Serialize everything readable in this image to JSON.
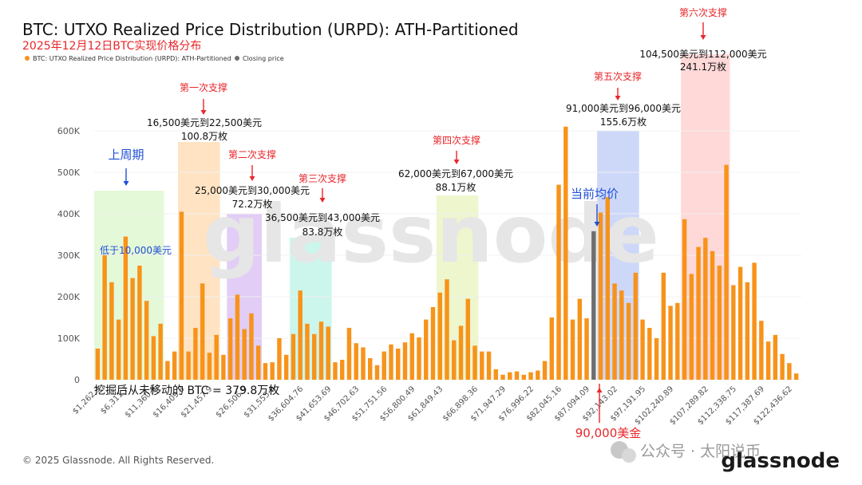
{
  "title": "BTC: UTXO Realized Price Distribution (URPD): ATH-Partitioned",
  "subtitle": "2025年12月12日BTC实现价格分布",
  "legend": {
    "series": "BTC: UTXO Realized Price Distribution (URPD): ATH-Partitioned",
    "closing": "Closing price"
  },
  "colors": {
    "bar": "#F7931A",
    "closing": "#6e6e6e",
    "red": "#e8262a",
    "blue": "#1f4fd6"
  },
  "watermark": "glassnode",
  "copyright": "© 2025 Glassnode. All Rights Reserved.",
  "footer_wechat": "公众号 · 太阳说币",
  "footer_brand": "glassnode",
  "chart_data": {
    "type": "bar",
    "ylim": [
      0,
      650000
    ],
    "y_ticks": [
      0,
      100000,
      200000,
      300000,
      400000,
      500000,
      600000
    ],
    "y_tick_labels": [
      "0",
      "100K",
      "200K",
      "300K",
      "400K",
      "500K",
      "600K"
    ],
    "x_tick_labels": [
      "$1,262.3",
      "$6,311.7",
      "$11,360.9",
      "$16,409.8",
      "$21,457.9",
      "$26,506.9",
      "$31,555.6",
      "$36,604.76",
      "$41,653.69",
      "$46,702.63",
      "$51,751.56",
      "$56,800.49",
      "$61,849.43",
      "$66,898.36",
      "$71,947.29",
      "$76,996.22",
      "$82,045.16",
      "$87,094.09",
      "$92,143.02",
      "$97,191.95",
      "$102,240.89",
      "$107,289.82",
      "$112,338.75",
      "$117,387.69",
      "$122,436.62"
    ],
    "values": [
      75000,
      300000,
      235000,
      145000,
      345000,
      245000,
      275000,
      190000,
      105000,
      135000,
      45000,
      68000,
      405000,
      68000,
      125000,
      232000,
      65000,
      108000,
      60000,
      148000,
      205000,
      122000,
      160000,
      82000,
      40000,
      42000,
      100000,
      60000,
      110000,
      215000,
      135000,
      110000,
      140000,
      128000,
      42000,
      48000,
      125000,
      88000,
      78000,
      52000,
      35000,
      68000,
      85000,
      75000,
      90000,
      112000,
      102000,
      145000,
      175000,
      210000,
      242000,
      95000,
      130000,
      195000,
      82000,
      68000,
      68000,
      25000,
      12000,
      18000,
      20000,
      12000,
      18000,
      22000,
      45000,
      150000,
      470000,
      610000,
      145000,
      195000,
      148000,
      358000,
      403000,
      440000,
      232000,
      215000,
      185000,
      258000,
      145000,
      125000,
      100000,
      258000,
      178000,
      185000,
      387000,
      255000,
      320000,
      342000,
      310000,
      275000,
      518000,
      228000,
      272000,
      235000,
      282000,
      142000,
      92000,
      108000,
      62000,
      40000,
      15000
    ],
    "closing_index": 71,
    "annotations": {
      "previous_cycle": "上周期",
      "below_10k": "低于10,000美元",
      "current_avg": "当前均价",
      "current_price": "90,000美金",
      "unmoved": "挖掘后从未移动的 BTC = 379.8万枚"
    },
    "support_zones": [
      {
        "label": "第一次支撑",
        "range": "16,500美元到22,500美元",
        "amount": "100.8万枚",
        "color": "#FFD7A8"
      },
      {
        "label": "第二次支撑",
        "range": "25,000美元到30,000美元",
        "amount": "72.2万枚",
        "color": "#D4B8F2"
      },
      {
        "label": "第三次支撑",
        "range": "36,500美元到43,000美元",
        "amount": "83.8万枚",
        "color": "#B6F2E4"
      },
      {
        "label": "第四次支撑",
        "range": "62,000美元到67,000美元",
        "amount": "88.1万枚",
        "color": "#E6F2B8"
      },
      {
        "label": "第五次支撑",
        "range": "91,000美元到96,000美元",
        "amount": "155.6万枚",
        "color": "#B8C8F7"
      },
      {
        "label": "第六次支撑",
        "range": "104,500美元到112,000美元",
        "amount": "241.1万枚",
        "color": "#FFC8C8"
      }
    ]
  }
}
